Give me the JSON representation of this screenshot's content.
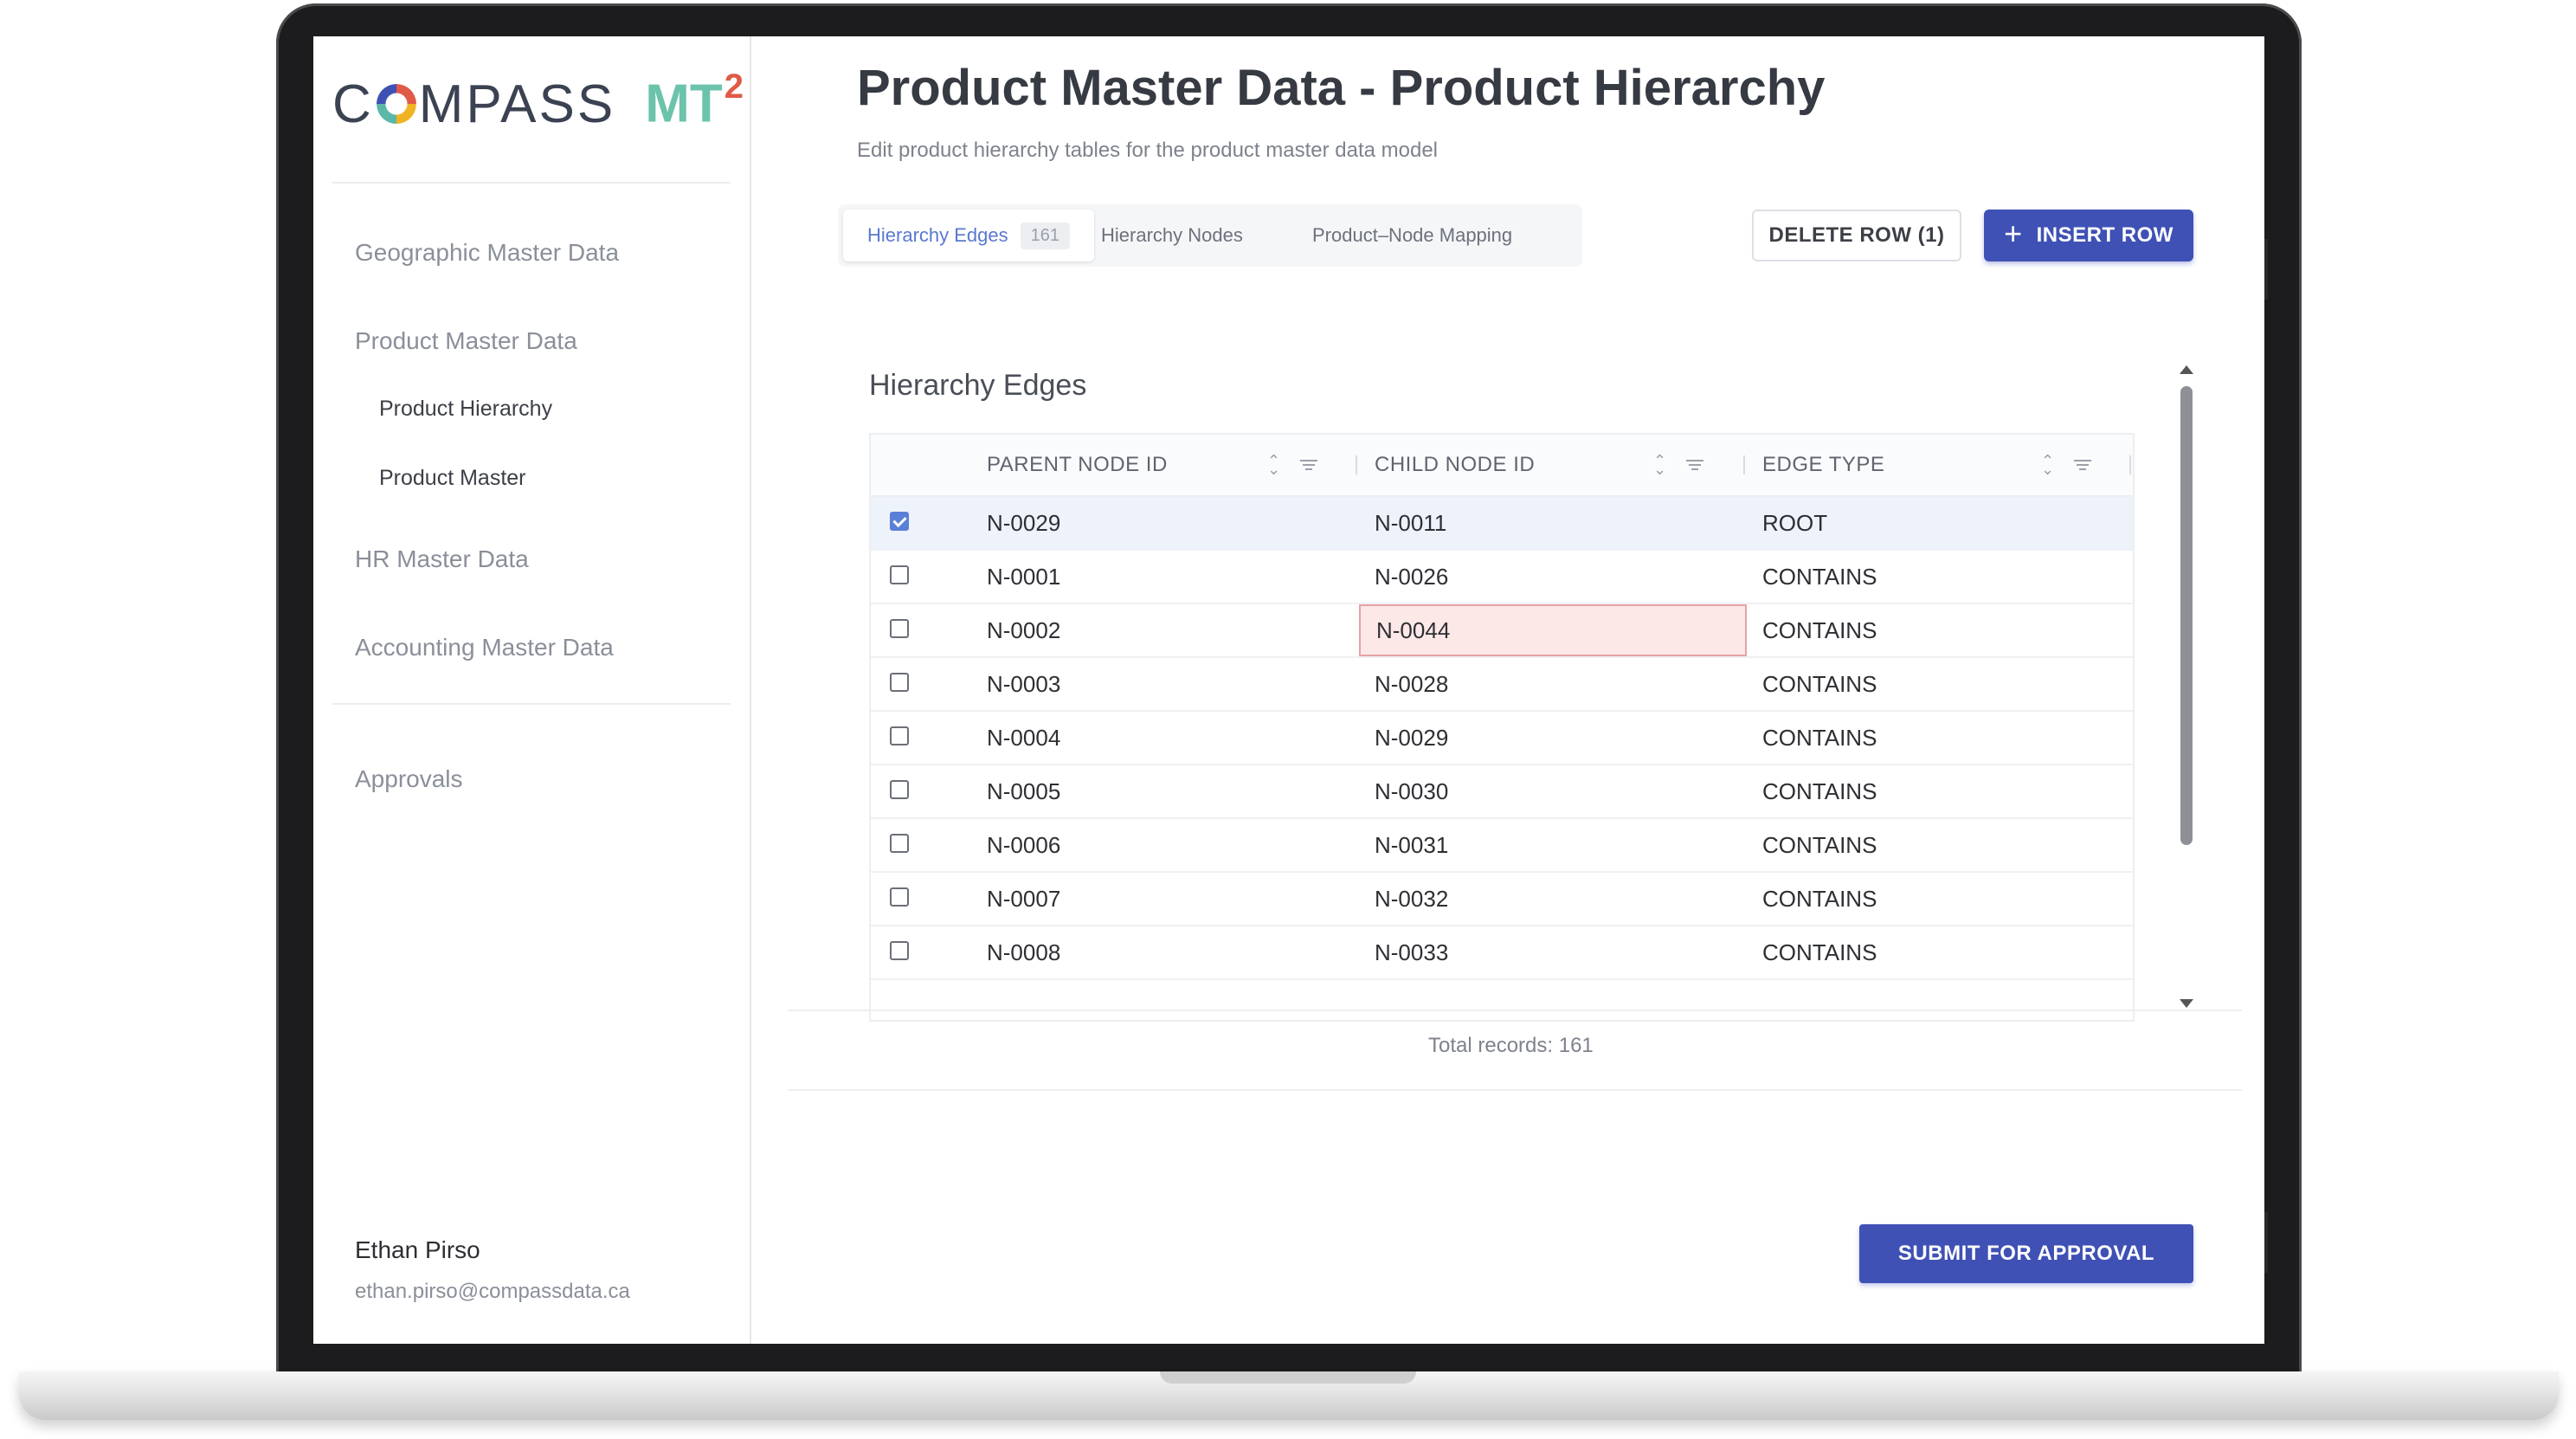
{
  "app": {
    "logo_text": "COMPASS",
    "logo_product": "MT",
    "logo_superscript": "2",
    "brand_colors": {
      "primary": "#3f51b5",
      "accent_teal": "#6cc3ab",
      "accent_red": "#e05a47",
      "accent_yellow": "#f0b323"
    }
  },
  "sidebar": {
    "items": [
      {
        "label": "Geographic Master Data"
      },
      {
        "label": "Product Master Data",
        "children": [
          {
            "label": "Product Hierarchy"
          },
          {
            "label": "Product Master"
          }
        ]
      },
      {
        "label": "HR Master Data"
      },
      {
        "label": "Accounting Master Data"
      },
      {
        "label": "Approvals"
      }
    ],
    "user": {
      "name": "Ethan Pirso",
      "email": "ethan.pirso@compassdata.ca"
    }
  },
  "header": {
    "title": "Product Master Data - Product Hierarchy",
    "subtitle": "Edit product hierarchy tables for the product master data model"
  },
  "tabs": [
    {
      "label": "Hierarchy Edges",
      "badge": "161",
      "active": true
    },
    {
      "label": "Hierarchy Nodes",
      "active": false
    },
    {
      "label": "Product–Node Mapping",
      "active": false
    }
  ],
  "toolbar": {
    "delete_label": "DELETE ROW (1)",
    "insert_label": "INSERT ROW",
    "insert_icon": "plus-icon"
  },
  "table": {
    "title": "Hierarchy Edges",
    "columns": [
      "PARENT NODE ID",
      "CHILD NODE ID",
      "EDGE TYPE"
    ],
    "rows": [
      {
        "selected": true,
        "cells": [
          "N-0029",
          "N-0011",
          "ROOT"
        ]
      },
      {
        "selected": false,
        "cells": [
          "N-0001",
          "N-0026",
          "CONTAINS"
        ]
      },
      {
        "selected": false,
        "cells": [
          "N-0002",
          "N-0044",
          "CONTAINS"
        ],
        "error_cell": 1
      },
      {
        "selected": false,
        "cells": [
          "N-0003",
          "N-0028",
          "CONTAINS"
        ]
      },
      {
        "selected": false,
        "cells": [
          "N-0004",
          "N-0029",
          "CONTAINS"
        ]
      },
      {
        "selected": false,
        "cells": [
          "N-0005",
          "N-0030",
          "CONTAINS"
        ]
      },
      {
        "selected": false,
        "cells": [
          "N-0006",
          "N-0031",
          "CONTAINS"
        ]
      },
      {
        "selected": false,
        "cells": [
          "N-0007",
          "N-0032",
          "CONTAINS"
        ]
      },
      {
        "selected": false,
        "cells": [
          "N-0008",
          "N-0033",
          "CONTAINS"
        ]
      }
    ],
    "total_records": "Total records: 161"
  },
  "actions": {
    "submit_label": "SUBMIT FOR APPROVAL"
  }
}
